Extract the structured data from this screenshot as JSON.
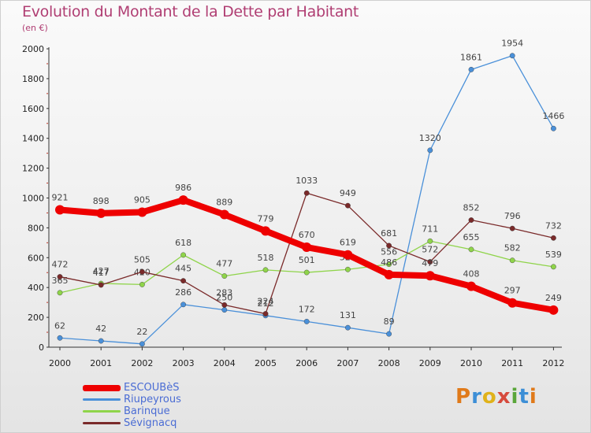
{
  "title": "Evolution du Montant de la Dette par Habitant",
  "subtitle": "(en €)",
  "logo": [
    "P",
    "r",
    "o",
    "x",
    "i",
    "t",
    "i"
  ],
  "chart_data": {
    "type": "line",
    "title": "Evolution du Montant de la Dette par Habitant",
    "subtitle": "(en €)",
    "x": [
      "2000",
      "2001",
      "2002",
      "2003",
      "2004",
      "2005",
      "2006",
      "2007",
      "2008",
      "2009",
      "2010",
      "2011",
      "2012"
    ],
    "ylim": [
      0,
      2000
    ],
    "yticks": [
      "0",
      "200",
      "400",
      "600",
      "800",
      "1000",
      "1200",
      "1400",
      "1600",
      "1800",
      "2000"
    ],
    "grid": false,
    "legend_position": "bottom-left",
    "series": [
      {
        "name": "ESCOUBèS",
        "color": "#ee0000",
        "width": 8,
        "values": [
          921,
          898,
          905,
          986,
          889,
          779,
          670,
          619,
          486,
          479,
          408,
          297,
          249
        ]
      },
      {
        "name": "Riupeyrous",
        "color": "#4a90d9",
        "width": 1.3,
        "values": [
          62,
          42,
          22,
          286,
          250,
          212,
          172,
          131,
          89,
          1320,
          1861,
          1954,
          1466
        ]
      },
      {
        "name": "Barinque",
        "color": "#8fd44a",
        "width": 1.3,
        "values": [
          365,
          427,
          420,
          618,
          477,
          518,
          501,
          521,
          556,
          711,
          655,
          582,
          539
        ]
      },
      {
        "name": "Sévignacq",
        "color": "#7a2a2a",
        "width": 1.3,
        "values": [
          472,
          417,
          505,
          445,
          283,
          224,
          1033,
          949,
          681,
          572,
          852,
          796,
          732
        ]
      }
    ]
  }
}
